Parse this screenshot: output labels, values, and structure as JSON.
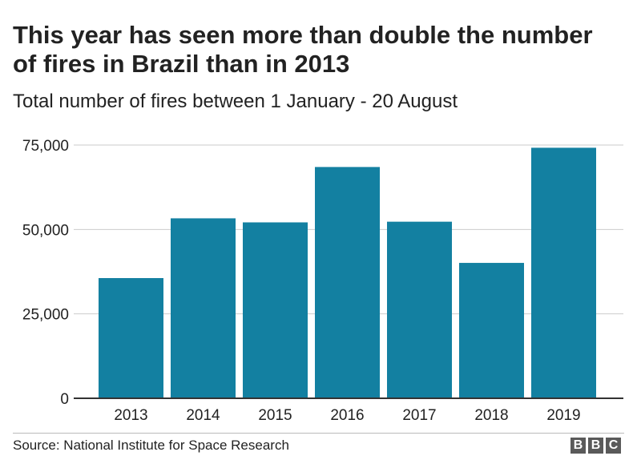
{
  "chart_data": {
    "type": "bar",
    "title": "This year has seen more than double the number of fires in Brazil than in 2013",
    "subtitle": "Total number of fires between 1 January - 20 August",
    "categories": [
      "2013",
      "2014",
      "2015",
      "2016",
      "2017",
      "2018",
      "2019"
    ],
    "values": [
      35600,
      53300,
      52100,
      68500,
      52300,
      40100,
      74200
    ],
    "yticks": [
      0,
      25000,
      50000,
      75000
    ],
    "ytick_labels": [
      "0",
      "25,000",
      "50,000",
      "75,000"
    ],
    "ylim": [
      0,
      75000
    ],
    "xlabel": "",
    "ylabel": "",
    "grid": true,
    "bar_color": "#1380a1",
    "grid_color": "#cbcbcb"
  },
  "footer": {
    "source": "Source: National Institute for Space Research",
    "logo_letters": [
      "B",
      "B",
      "C"
    ]
  }
}
